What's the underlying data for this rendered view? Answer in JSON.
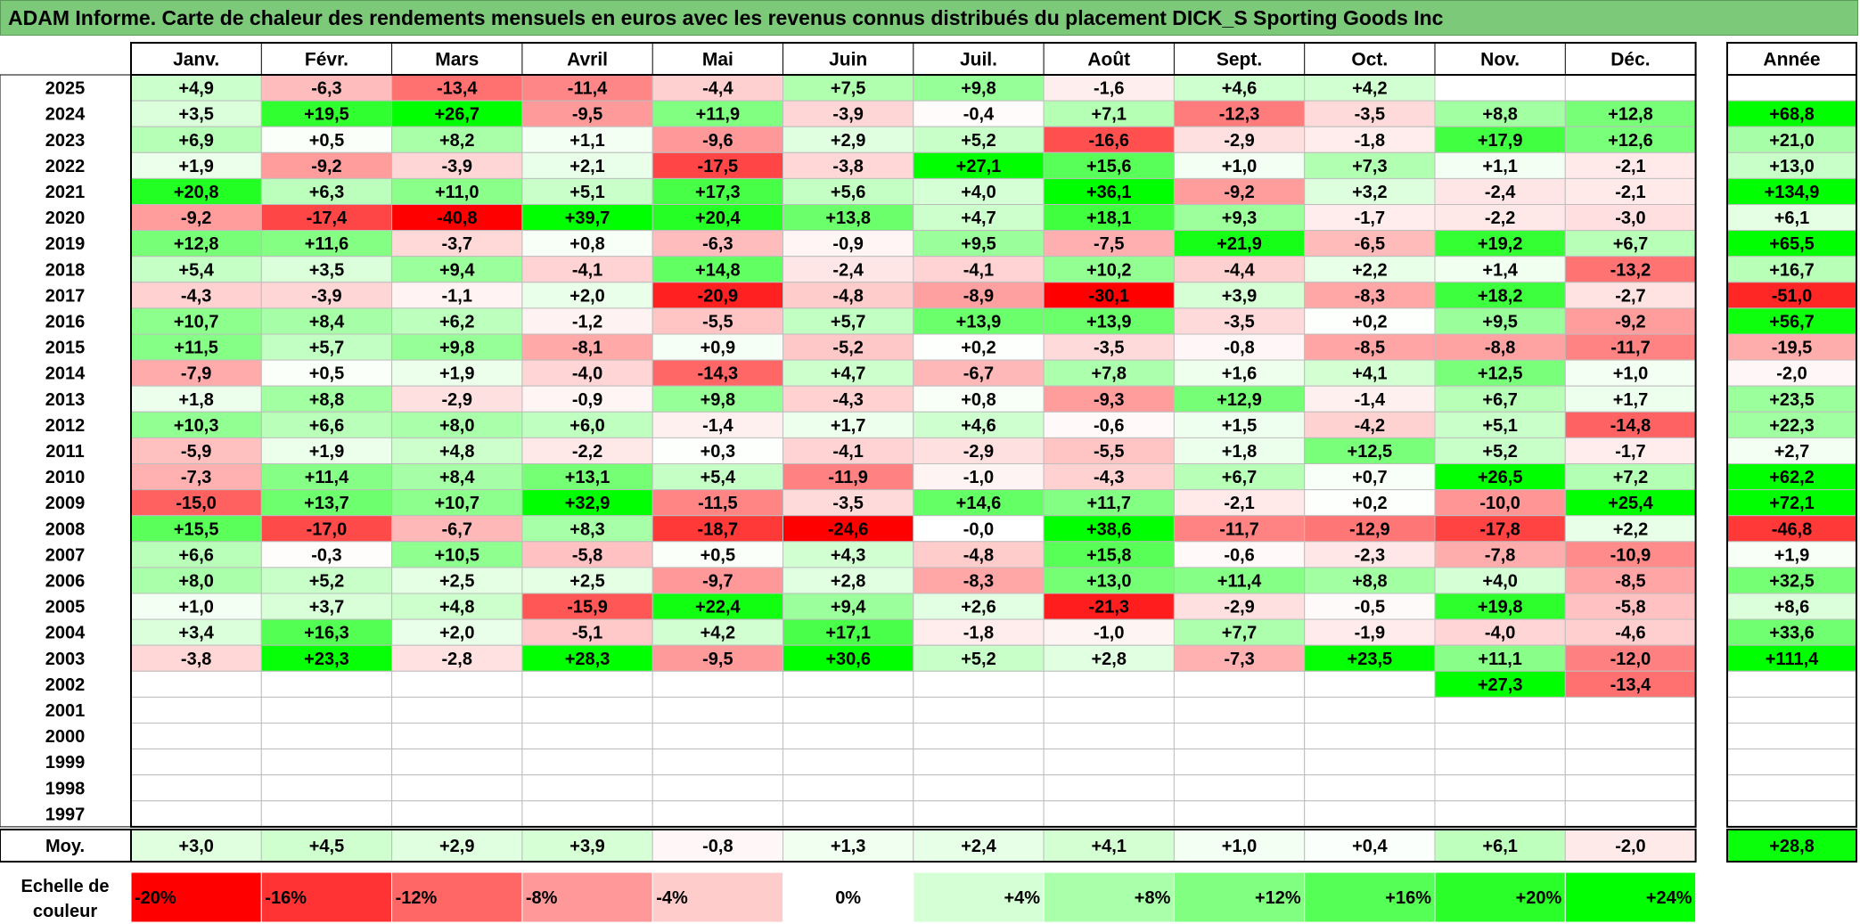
{
  "title": "ADAM Informe. Carte de chaleur des rendements mensuels en euros avec les revenus connus distribués du placement DICK_S Sporting Goods Inc",
  "chart_data": {
    "type": "heatmap",
    "months": [
      "Janv.",
      "Févr.",
      "Mars",
      "Avril",
      "Mai",
      "Juin",
      "Juil.",
      "Août",
      "Sept.",
      "Oct.",
      "Nov.",
      "Déc."
    ],
    "year_label": "Année",
    "avg_label": "Moy.",
    "legend_label": "Echelle de couleur",
    "rows": [
      {
        "year": "2025",
        "values": [
          "+4,9",
          "-6,3",
          "-13,4",
          "-11,4",
          "-4,4",
          "+7,5",
          "+9,8",
          "-1,6",
          "+4,6",
          "+4,2",
          "",
          ""
        ],
        "annual": ""
      },
      {
        "year": "2024",
        "values": [
          "+3,5",
          "+19,5",
          "+26,7",
          "-9,5",
          "+11,9",
          "-3,9",
          "-0,4",
          "+7,1",
          "-12,3",
          "-3,5",
          "+8,8",
          "+12,8"
        ],
        "annual": "+68,8"
      },
      {
        "year": "2023",
        "values": [
          "+6,9",
          "+0,5",
          "+8,2",
          "+1,1",
          "-9,6",
          "+2,9",
          "+5,2",
          "-16,6",
          "-2,9",
          "-1,8",
          "+17,9",
          "+12,6"
        ],
        "annual": "+21,0"
      },
      {
        "year": "2022",
        "values": [
          "+1,9",
          "-9,2",
          "-3,9",
          "+2,1",
          "-17,5",
          "-3,8",
          "+27,1",
          "+15,6",
          "+1,0",
          "+7,3",
          "+1,1",
          "-2,1"
        ],
        "annual": "+13,0"
      },
      {
        "year": "2021",
        "values": [
          "+20,8",
          "+6,3",
          "+11,0",
          "+5,1",
          "+17,3",
          "+5,6",
          "+4,0",
          "+36,1",
          "-9,2",
          "+3,2",
          "-2,4",
          "-2,1"
        ],
        "annual": "+134,9"
      },
      {
        "year": "2020",
        "values": [
          "-9,2",
          "-17,4",
          "-40,8",
          "+39,7",
          "+20,4",
          "+13,8",
          "+4,7",
          "+18,1",
          "+9,3",
          "-1,7",
          "-2,2",
          "-3,0"
        ],
        "annual": "+6,1"
      },
      {
        "year": "2019",
        "values": [
          "+12,8",
          "+11,6",
          "-3,7",
          "+0,8",
          "-6,3",
          "-0,9",
          "+9,5",
          "-7,5",
          "+21,9",
          "-6,5",
          "+19,2",
          "+6,7"
        ],
        "annual": "+65,5"
      },
      {
        "year": "2018",
        "values": [
          "+5,4",
          "+3,5",
          "+9,4",
          "-4,1",
          "+14,8",
          "-2,4",
          "-4,1",
          "+10,2",
          "-4,4",
          "+2,2",
          "+1,4",
          "-13,2"
        ],
        "annual": "+16,7"
      },
      {
        "year": "2017",
        "values": [
          "-4,3",
          "-3,9",
          "-1,1",
          "+2,0",
          "-20,9",
          "-4,8",
          "-8,9",
          "-30,1",
          "+3,9",
          "-8,3",
          "+18,2",
          "-2,7"
        ],
        "annual": "-51,0"
      },
      {
        "year": "2016",
        "values": [
          "+10,7",
          "+8,4",
          "+6,2",
          "-1,2",
          "-5,5",
          "+5,7",
          "+13,9",
          "+13,9",
          "-3,5",
          "+0,2",
          "+9,5",
          "-9,2"
        ],
        "annual": "+56,7"
      },
      {
        "year": "2015",
        "values": [
          "+11,5",
          "+5,7",
          "+9,8",
          "-8,1",
          "+0,9",
          "-5,2",
          "+0,2",
          "-3,5",
          "-0,8",
          "-8,5",
          "-8,8",
          "-11,7"
        ],
        "annual": "-19,5"
      },
      {
        "year": "2014",
        "values": [
          "-7,9",
          "+0,5",
          "+1,9",
          "-4,0",
          "-14,3",
          "+4,7",
          "-6,7",
          "+7,8",
          "+1,6",
          "+4,1",
          "+12,5",
          "+1,0"
        ],
        "annual": "-2,0"
      },
      {
        "year": "2013",
        "values": [
          "+1,8",
          "+8,8",
          "-2,9",
          "-0,9",
          "+9,8",
          "-4,3",
          "+0,8",
          "-9,3",
          "+12,9",
          "-1,4",
          "+6,7",
          "+1,7"
        ],
        "annual": "+23,5"
      },
      {
        "year": "2012",
        "values": [
          "+10,3",
          "+6,6",
          "+8,0",
          "+6,0",
          "-1,4",
          "+1,7",
          "+4,6",
          "-0,6",
          "+1,5",
          "-4,2",
          "+5,1",
          "-14,8"
        ],
        "annual": "+22,3"
      },
      {
        "year": "2011",
        "values": [
          "-5,9",
          "+1,9",
          "+4,8",
          "-2,2",
          "+0,3",
          "-4,1",
          "-2,9",
          "-5,5",
          "+1,8",
          "+12,5",
          "+5,2",
          "-1,7"
        ],
        "annual": "+2,7"
      },
      {
        "year": "2010",
        "values": [
          "-7,3",
          "+11,4",
          "+8,4",
          "+13,1",
          "+5,4",
          "-11,9",
          "-1,0",
          "-4,3",
          "+6,7",
          "+0,7",
          "+26,5",
          "+7,2"
        ],
        "annual": "+62,2"
      },
      {
        "year": "2009",
        "values": [
          "-15,0",
          "+13,7",
          "+10,7",
          "+32,9",
          "-11,5",
          "-3,5",
          "+14,6",
          "+11,7",
          "-2,1",
          "+0,2",
          "-10,0",
          "+25,4"
        ],
        "annual": "+72,1"
      },
      {
        "year": "2008",
        "values": [
          "+15,5",
          "-17,0",
          "-6,7",
          "+8,3",
          "-18,7",
          "-24,6",
          "-0,0",
          "+38,6",
          "-11,7",
          "-12,9",
          "-17,8",
          "+2,2"
        ],
        "annual": "-46,8"
      },
      {
        "year": "2007",
        "values": [
          "+6,6",
          "-0,3",
          "+10,5",
          "-5,8",
          "+0,5",
          "+4,3",
          "-4,8",
          "+15,8",
          "-0,6",
          "-2,3",
          "-7,8",
          "-10,9"
        ],
        "annual": "+1,9"
      },
      {
        "year": "2006",
        "values": [
          "+8,0",
          "+5,2",
          "+2,5",
          "+2,5",
          "-9,7",
          "+2,8",
          "-8,3",
          "+13,0",
          "+11,4",
          "+8,8",
          "+4,0",
          "-8,5"
        ],
        "annual": "+32,5"
      },
      {
        "year": "2005",
        "values": [
          "+1,0",
          "+3,7",
          "+4,8",
          "-15,9",
          "+22,4",
          "+9,4",
          "+2,6",
          "-21,3",
          "-2,9",
          "-0,5",
          "+19,8",
          "-5,8"
        ],
        "annual": "+8,6"
      },
      {
        "year": "2004",
        "values": [
          "+3,4",
          "+16,3",
          "+2,0",
          "-5,1",
          "+4,2",
          "+17,1",
          "-1,8",
          "-1,0",
          "+7,7",
          "-1,9",
          "-4,0",
          "-4,6"
        ],
        "annual": "+33,6"
      },
      {
        "year": "2003",
        "values": [
          "-3,8",
          "+23,3",
          "-2,8",
          "+28,3",
          "-9,5",
          "+30,6",
          "+5,2",
          "+2,8",
          "-7,3",
          "+23,5",
          "+11,1",
          "-12,0"
        ],
        "annual": "+111,4"
      },
      {
        "year": "2002",
        "values": [
          "",
          "",
          "",
          "",
          "",
          "",
          "",
          "",
          "",
          "",
          "+27,3",
          "-13,4"
        ],
        "annual": ""
      },
      {
        "year": "2001",
        "values": [
          "",
          "",
          "",
          "",
          "",
          "",
          "",
          "",
          "",
          "",
          "",
          ""
        ],
        "annual": ""
      },
      {
        "year": "2000",
        "values": [
          "",
          "",
          "",
          "",
          "",
          "",
          "",
          "",
          "",
          "",
          "",
          ""
        ],
        "annual": ""
      },
      {
        "year": "1999",
        "values": [
          "",
          "",
          "",
          "",
          "",
          "",
          "",
          "",
          "",
          "",
          "",
          ""
        ],
        "annual": ""
      },
      {
        "year": "1998",
        "values": [
          "",
          "",
          "",
          "",
          "",
          "",
          "",
          "",
          "",
          "",
          "",
          ""
        ],
        "annual": ""
      },
      {
        "year": "1997",
        "values": [
          "",
          "",
          "",
          "",
          "",
          "",
          "",
          "",
          "",
          "",
          "",
          ""
        ],
        "annual": ""
      }
    ],
    "averages": [
      "+3,0",
      "+4,5",
      "+2,9",
      "+3,9",
      "-0,8",
      "+1,3",
      "+2,4",
      "+4,1",
      "+1,0",
      "+0,4",
      "+6,1",
      "-2,0"
    ],
    "average_annual": "+28,8",
    "scale": [
      "-20%",
      "-16%",
      "-12%",
      "-8%",
      "-4%",
      "0%",
      "+4%",
      "+8%",
      "+12%",
      "+16%",
      "+20%",
      "+24%"
    ],
    "colors": {
      "negative_max": "#ff0000",
      "positive_max": "#00ff00",
      "neutral": "#ffffff"
    }
  }
}
